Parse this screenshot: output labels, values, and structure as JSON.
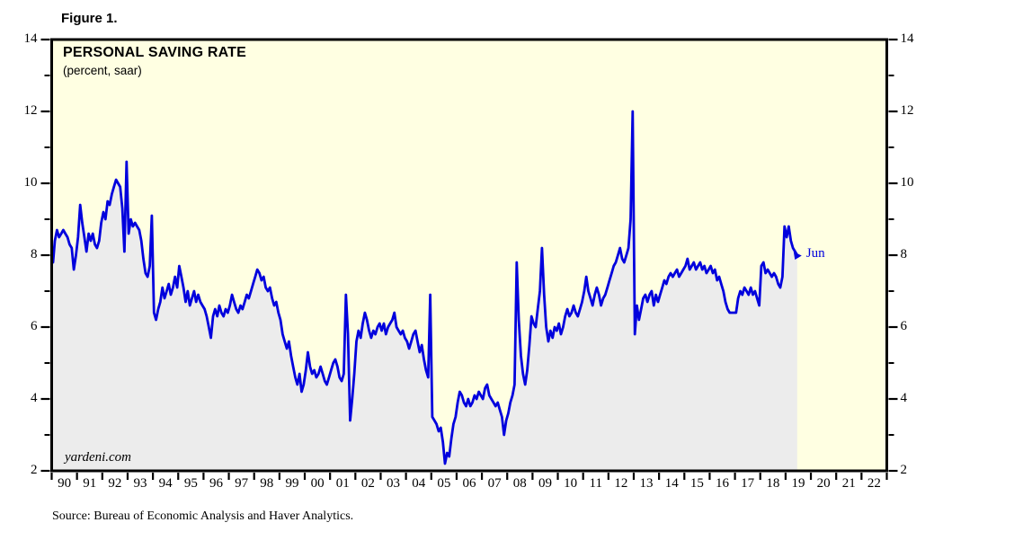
{
  "figure_label": "Figure 1.",
  "chart": {
    "title": "PERSONAL SAVING RATE",
    "subtitle": "(percent, saar)",
    "watermark": "yardeni.com",
    "last_point_label": "Jun"
  },
  "footer": {
    "source": "Source: Bureau of Economic Analysis and Haver Analytics."
  },
  "chart_data": {
    "type": "area",
    "title": "PERSONAL SAVING RATE",
    "subtitle": "(percent, saar)",
    "xlabel": "",
    "ylabel": "percent, saar",
    "ylim": [
      2,
      14
    ],
    "y_ticks": [
      2,
      4,
      6,
      8,
      10,
      12,
      14
    ],
    "y_minor_ticks": [
      3,
      5,
      7,
      9,
      11,
      13
    ],
    "x_range_years": [
      1990,
      2023
    ],
    "x_tick_labels": [
      "90",
      "91",
      "92",
      "93",
      "94",
      "95",
      "96",
      "97",
      "98",
      "99",
      "00",
      "01",
      "02",
      "03",
      "04",
      "05",
      "06",
      "07",
      "08",
      "09",
      "10",
      "11",
      "12",
      "13",
      "14",
      "15",
      "16",
      "17",
      "18",
      "19",
      "20",
      "21",
      "22"
    ],
    "grid": false,
    "legend": "none",
    "colors": {
      "line": "#0101dd",
      "fill": "#ececec",
      "plot_background": "#ffffe2",
      "border": "#000000",
      "page_background": "#ffffff"
    },
    "annotations": [
      {
        "text": "Jun",
        "period": "2019-06",
        "value": 8.0,
        "position": "end-of-line",
        "color": "#0101dd"
      }
    ],
    "series": [
      {
        "name": "Personal Saving Rate",
        "frequency": "monthly",
        "start_year": 1990,
        "start_month": 1,
        "end_year": 2019,
        "end_month": 6,
        "values": [
          7.8,
          8.4,
          8.7,
          8.5,
          8.6,
          8.7,
          8.6,
          8.5,
          8.3,
          8.2,
          7.6,
          8.0,
          8.5,
          9.4,
          8.9,
          8.5,
          8.1,
          8.6,
          8.4,
          8.6,
          8.3,
          8.2,
          8.4,
          8.9,
          9.2,
          9.0,
          9.5,
          9.4,
          9.7,
          9.9,
          10.1,
          10.0,
          9.9,
          9.3,
          8.1,
          10.6,
          8.6,
          9.0,
          8.8,
          8.9,
          8.8,
          8.7,
          8.4,
          7.9,
          7.5,
          7.4,
          7.7,
          9.1,
          6.4,
          6.2,
          6.5,
          6.7,
          7.1,
          6.8,
          7.0,
          7.2,
          6.9,
          7.1,
          7.4,
          7.1,
          7.7,
          7.4,
          7.1,
          6.7,
          7.0,
          6.6,
          6.8,
          7.0,
          6.7,
          6.9,
          6.7,
          6.6,
          6.5,
          6.3,
          6.0,
          5.7,
          6.3,
          6.5,
          6.3,
          6.6,
          6.4,
          6.3,
          6.5,
          6.4,
          6.6,
          6.9,
          6.7,
          6.5,
          6.4,
          6.6,
          6.5,
          6.7,
          6.9,
          6.8,
          7.0,
          7.2,
          7.4,
          7.6,
          7.5,
          7.3,
          7.4,
          7.1,
          7.0,
          7.1,
          6.8,
          6.6,
          6.7,
          6.4,
          6.2,
          5.8,
          5.6,
          5.4,
          5.6,
          5.2,
          4.9,
          4.6,
          4.4,
          4.7,
          4.2,
          4.4,
          4.8,
          5.3,
          4.9,
          4.7,
          4.8,
          4.6,
          4.7,
          4.9,
          4.7,
          4.5,
          4.4,
          4.6,
          4.8,
          5.0,
          5.1,
          4.9,
          4.6,
          4.5,
          4.7,
          6.9,
          5.8,
          3.4,
          4.0,
          4.7,
          5.6,
          5.9,
          5.7,
          6.1,
          6.4,
          6.2,
          5.9,
          5.7,
          5.9,
          5.8,
          6.0,
          6.1,
          5.9,
          6.1,
          5.8,
          6.0,
          6.1,
          6.2,
          6.4,
          6.0,
          5.9,
          5.8,
          5.9,
          5.7,
          5.6,
          5.4,
          5.6,
          5.8,
          5.9,
          5.6,
          5.3,
          5.5,
          5.1,
          4.8,
          4.6,
          6.9,
          3.5,
          3.4,
          3.3,
          3.1,
          3.2,
          2.8,
          2.2,
          2.5,
          2.4,
          2.9,
          3.3,
          3.5,
          3.9,
          4.2,
          4.1,
          3.9,
          3.8,
          4.0,
          3.8,
          3.9,
          4.1,
          4.0,
          4.2,
          4.1,
          4.0,
          4.3,
          4.4,
          4.1,
          4.0,
          3.9,
          3.8,
          3.9,
          3.7,
          3.5,
          3.0,
          3.4,
          3.6,
          3.9,
          4.1,
          4.4,
          7.8,
          6.2,
          5.2,
          4.7,
          4.4,
          4.8,
          5.5,
          6.3,
          6.1,
          6.0,
          6.5,
          7.0,
          8.2,
          6.9,
          6.0,
          5.6,
          5.9,
          5.7,
          6.0,
          5.9,
          6.1,
          5.8,
          6.0,
          6.3,
          6.5,
          6.3,
          6.4,
          6.6,
          6.4,
          6.3,
          6.5,
          6.7,
          7.0,
          7.4,
          7.0,
          6.8,
          6.6,
          6.9,
          7.1,
          6.9,
          6.6,
          6.8,
          6.9,
          7.1,
          7.3,
          7.5,
          7.7,
          7.8,
          8.0,
          8.2,
          7.9,
          7.8,
          8.0,
          8.2,
          9.0,
          12.0,
          5.8,
          6.6,
          6.2,
          6.5,
          6.8,
          6.9,
          6.7,
          6.9,
          7.0,
          6.6,
          6.9,
          6.7,
          6.9,
          7.1,
          7.3,
          7.2,
          7.4,
          7.5,
          7.4,
          7.5,
          7.6,
          7.4,
          7.5,
          7.6,
          7.7,
          7.9,
          7.6,
          7.7,
          7.8,
          7.6,
          7.7,
          7.8,
          7.6,
          7.7,
          7.5,
          7.6,
          7.7,
          7.5,
          7.6,
          7.3,
          7.4,
          7.2,
          7.0,
          6.7,
          6.5,
          6.4,
          6.4,
          6.4,
          6.4,
          6.8,
          7.0,
          6.9,
          7.1,
          7.0,
          6.9,
          7.1,
          6.9,
          7.0,
          6.8,
          6.6,
          7.7,
          7.8,
          7.5,
          7.6,
          7.5,
          7.4,
          7.5,
          7.4,
          7.2,
          7.1,
          7.4,
          8.8,
          8.5,
          8.8,
          8.4,
          8.2,
          8.1,
          8.0
        ]
      }
    ]
  }
}
